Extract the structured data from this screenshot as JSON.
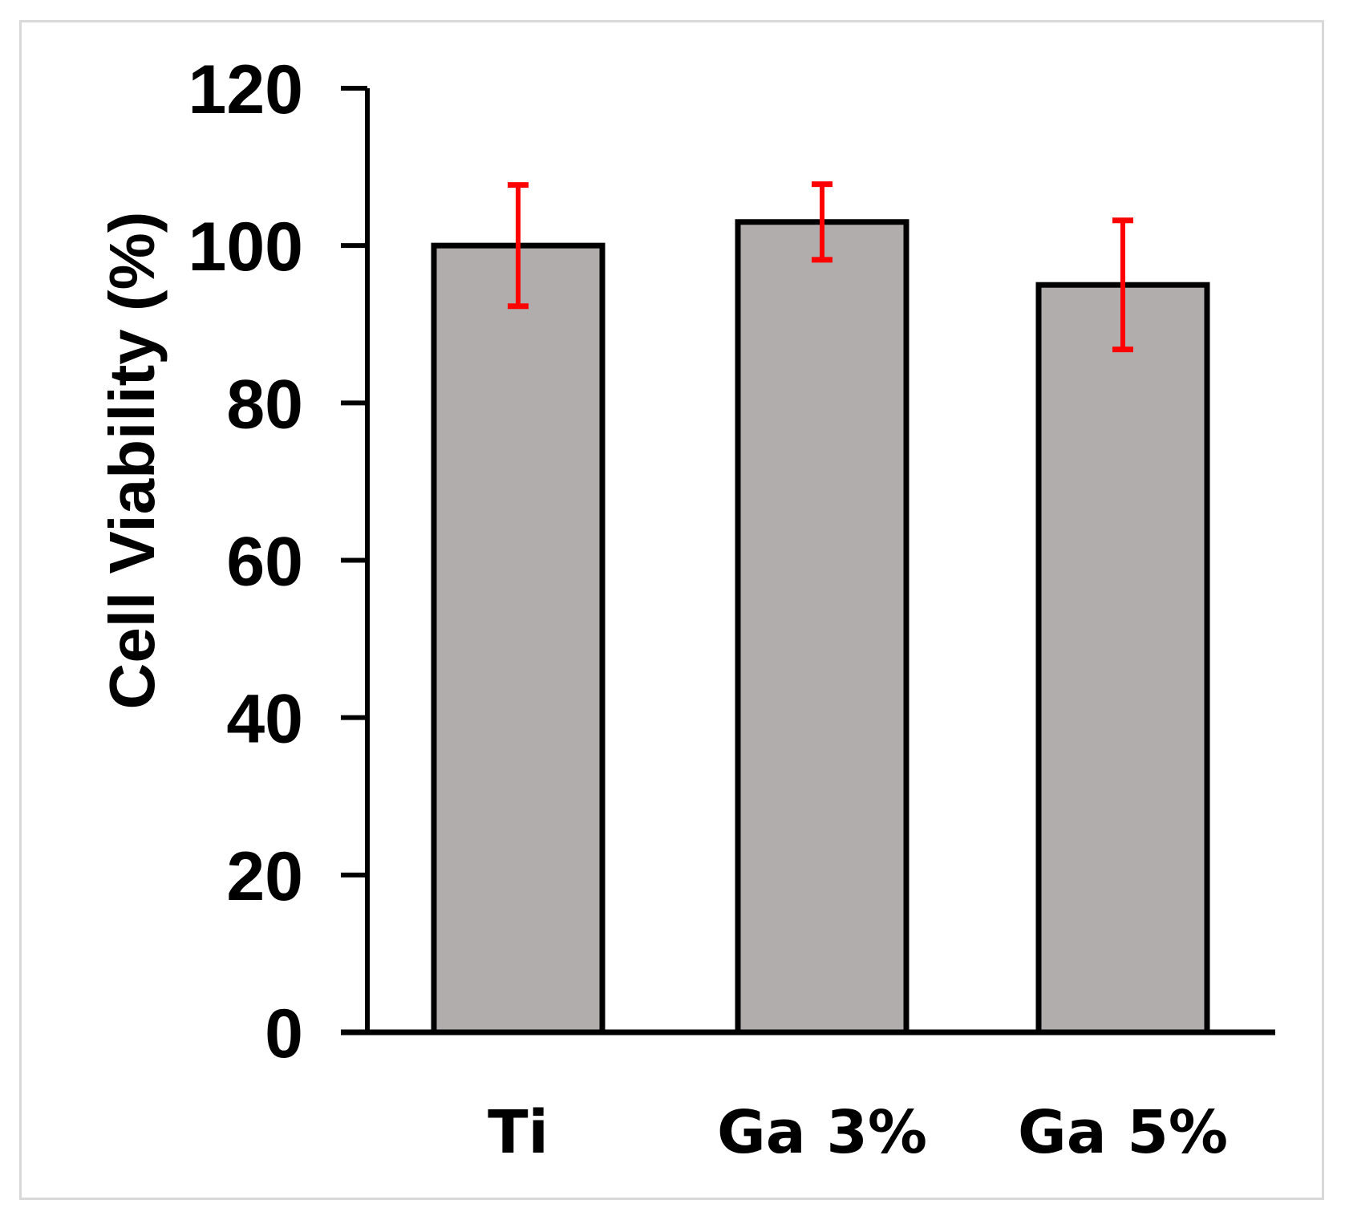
{
  "chart_data": {
    "type": "bar",
    "title": "",
    "xlabel": "",
    "ylabel": "Cell Viability (%)",
    "ylim": [
      0,
      120
    ],
    "yticks": [
      0,
      20,
      40,
      60,
      80,
      100,
      120
    ],
    "ytick_labels": [
      "0",
      "20",
      "40",
      "60",
      "80",
      "100",
      "120"
    ],
    "categories": [
      "Ti",
      "Ga 3%",
      "Ga 5%"
    ],
    "values": [
      100,
      103,
      95
    ],
    "errors": [
      7.7,
      4.8,
      8.2
    ],
    "grid": false,
    "legend": "none",
    "colors": {
      "bar_fill": "#b1adac",
      "bar_edge": "#000000",
      "error_bar": "#ff0000",
      "axis": "#000000"
    }
  }
}
